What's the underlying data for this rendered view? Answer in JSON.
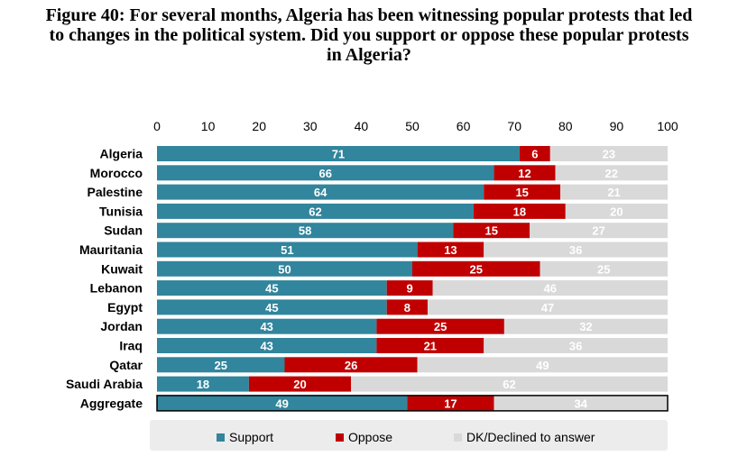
{
  "title_lines": [
    "Figure 40: For several months, Algeria has been witnessing popular protests that led",
    "to changes in the political system. Did you support or oppose these popular protests",
    "in Algeria?"
  ],
  "colors": {
    "support": "#31859c",
    "oppose": "#c00000",
    "dk": "#d9d9d9",
    "legend_bg": "#ececec",
    "label_on_dark": "#ffffff",
    "label_on_light": "#ffffff"
  },
  "chart_data": {
    "type": "bar",
    "orientation": "horizontal",
    "stacked": true,
    "categories": [
      "Algeria",
      "Morocco",
      "Palestine",
      "Tunisia",
      "Sudan",
      "Mauritania",
      "Kuwait",
      "Lebanon",
      "Egypt",
      "Jordan",
      "Iraq",
      "Qatar",
      "Saudi Arabia",
      "Aggregate"
    ],
    "series": [
      {
        "name": "Support",
        "values": [
          71,
          66,
          64,
          62,
          58,
          51,
          50,
          45,
          45,
          43,
          43,
          25,
          18,
          49
        ]
      },
      {
        "name": "Oppose",
        "values": [
          6,
          12,
          15,
          18,
          15,
          13,
          25,
          9,
          8,
          25,
          21,
          26,
          20,
          17
        ]
      },
      {
        "name": "DK/Declined to answer",
        "values": [
          23,
          22,
          21,
          20,
          27,
          36,
          25,
          46,
          47,
          32,
          36,
          49,
          62,
          34
        ]
      }
    ],
    "xlim": [
      0,
      100
    ],
    "xticks": [
      0,
      10,
      20,
      30,
      40,
      50,
      60,
      70,
      80,
      90,
      100
    ],
    "x_axis_position": "top",
    "highlighted_category": "Aggregate",
    "legend_position": "bottom",
    "grid": false
  }
}
